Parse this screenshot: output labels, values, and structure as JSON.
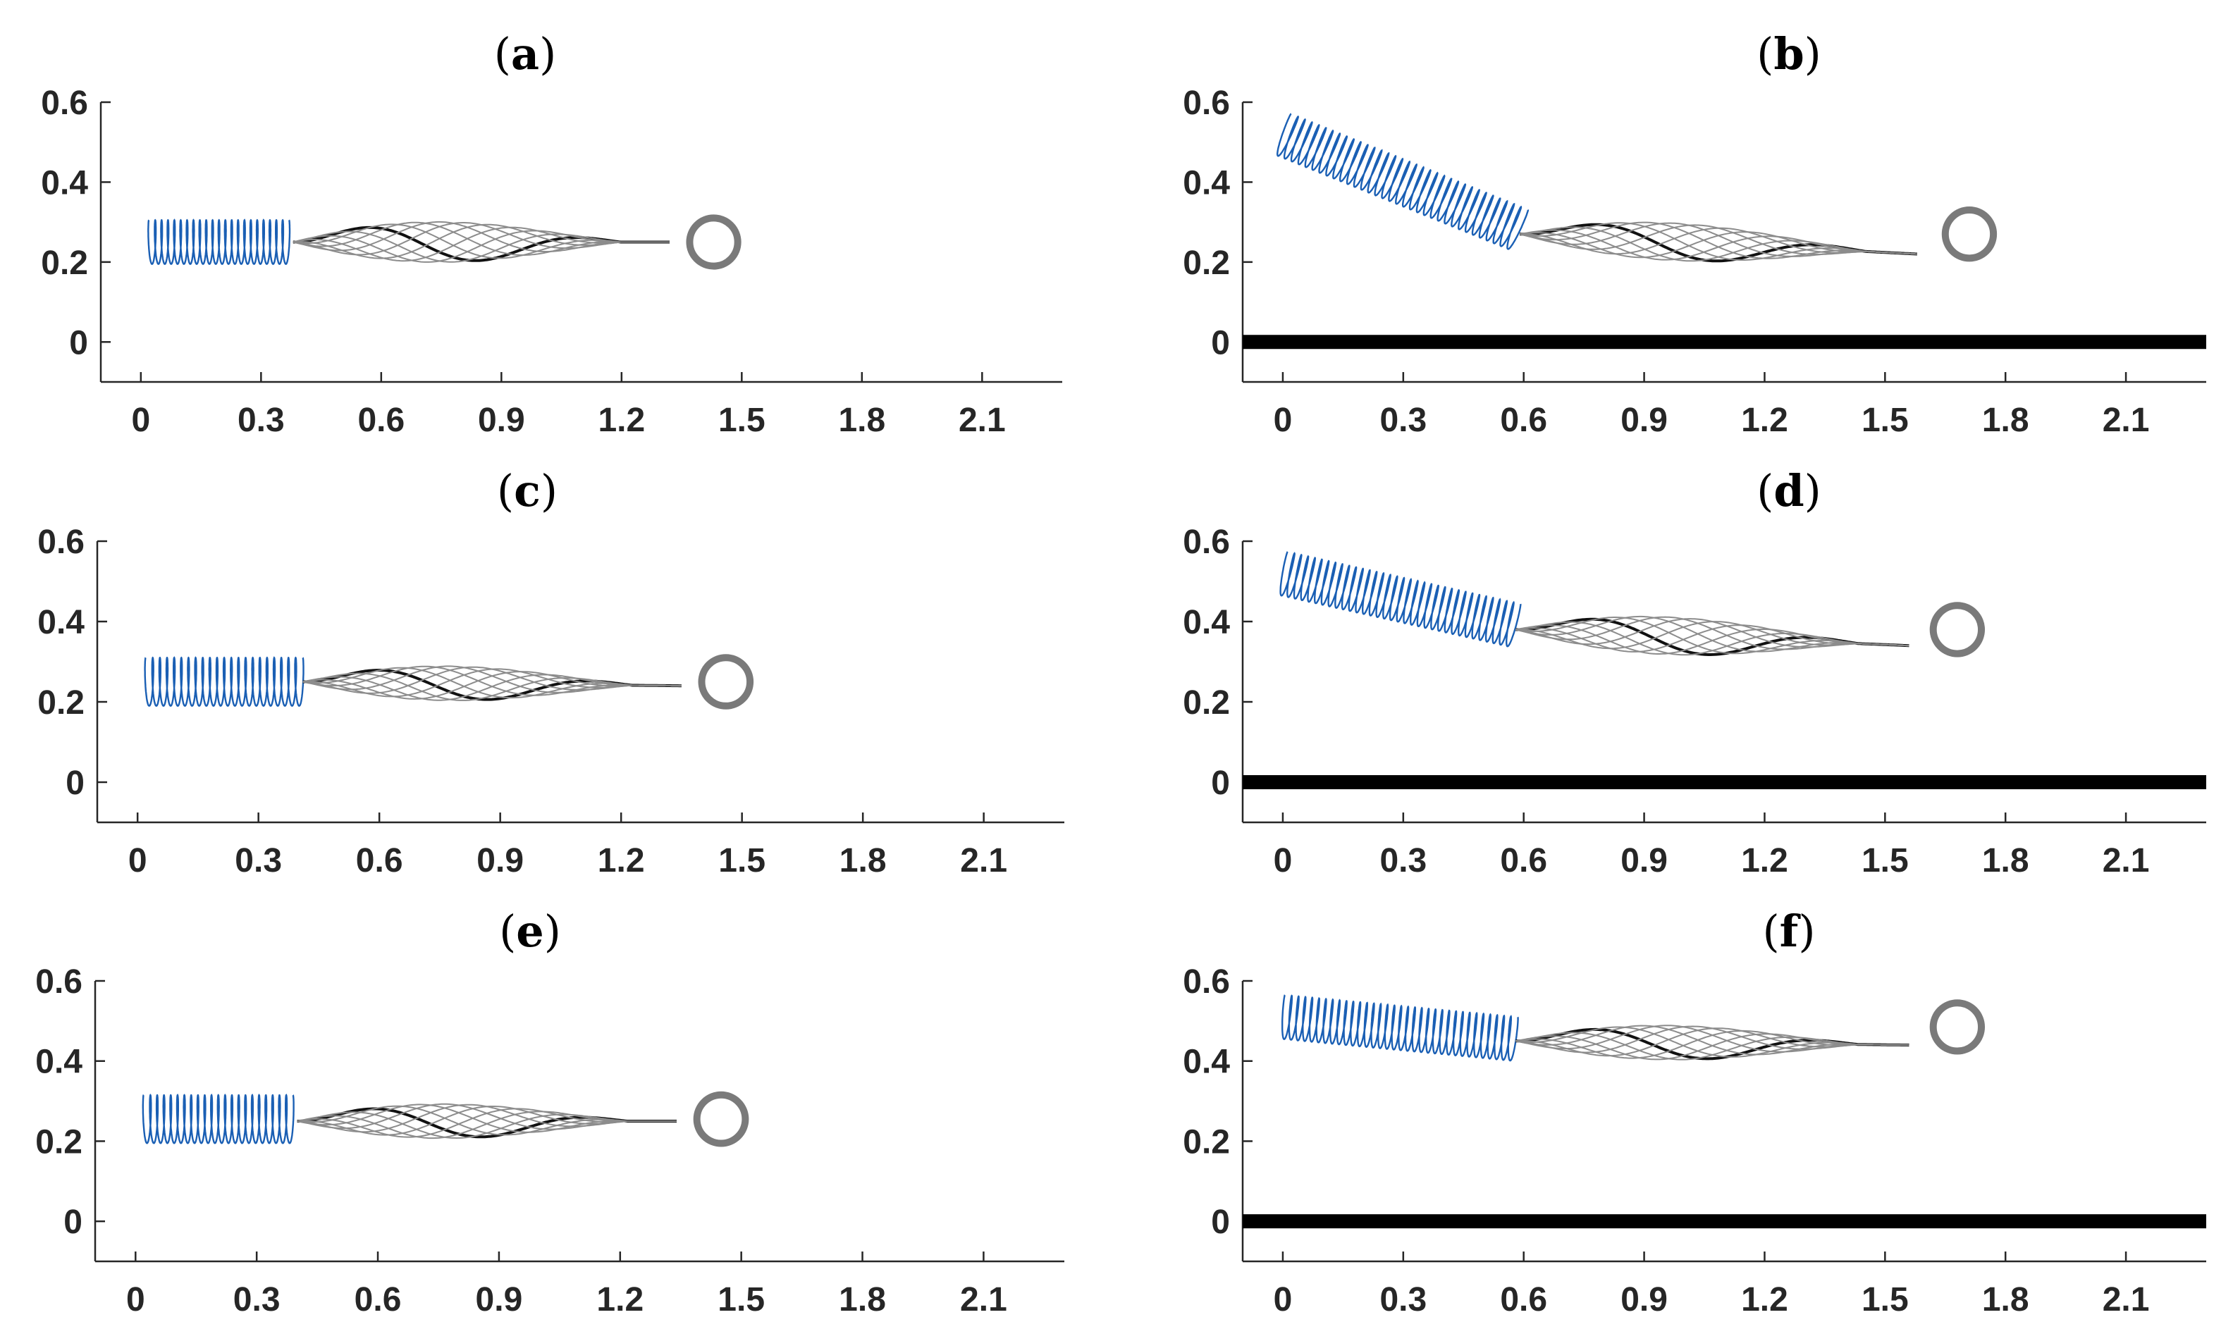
{
  "chart_data": [
    {
      "type": "line",
      "label": "(a)",
      "label_letter": "a",
      "xlim": [
        -0.1,
        2.3
      ],
      "ylim": [
        -0.1,
        0.6
      ],
      "x_ticks": [
        0,
        0.3,
        0.6,
        0.9,
        1.2,
        1.5,
        1.8,
        2.1
      ],
      "x_tick_labels": [
        "0",
        "0.3",
        "0.6",
        "0.9",
        "1.2",
        "1.5",
        "1.8",
        "2.1"
      ],
      "y_ticks": [
        0,
        0.2,
        0.4,
        0.6
      ],
      "y_tick_labels": [
        "0",
        "0.2",
        "0.4",
        "0.6"
      ],
      "ground": false,
      "helix": {
        "x_start": 0.02,
        "y_start": 0.25,
        "x_end": 0.37,
        "y_end": 0.25,
        "radius": 0.055,
        "turns": 22,
        "color": "#1a5fb4"
      },
      "tail": {
        "x_start": 0.38,
        "x_end": 1.32,
        "y_base_start": 0.25,
        "y_base_end": 0.25,
        "amplitude": 0.065,
        "frames": 9,
        "color": "#8c8c8c"
      },
      "target": {
        "x": 1.43,
        "y": 0.25,
        "radius": 0.1,
        "color": "#7a7a7a"
      }
    },
    {
      "type": "line",
      "label": "(b)",
      "label_letter": "b",
      "xlim": [
        -0.1,
        2.3
      ],
      "ylim": [
        -0.1,
        0.6
      ],
      "x_ticks": [
        0,
        0.3,
        0.6,
        0.9,
        1.2,
        1.5,
        1.8,
        2.1
      ],
      "x_tick_labels": [
        "0",
        "0.3",
        "0.6",
        "0.9",
        "1.2",
        "1.5",
        "1.8",
        "2.1"
      ],
      "y_ticks": [
        0,
        0.2,
        0.4,
        0.6
      ],
      "y_tick_labels": [
        "0",
        "0.2",
        "0.4",
        "0.6"
      ],
      "ground": true,
      "helix": {
        "x_start": 0.0,
        "y_start": 0.52,
        "x_end": 0.59,
        "y_end": 0.28,
        "radius": 0.055,
        "turns": 34,
        "color": "#1a5fb4"
      },
      "tail": {
        "x_start": 0.59,
        "x_end": 1.58,
        "y_base_start": 0.27,
        "y_base_end": 0.22,
        "amplitude": 0.06,
        "frames": 9,
        "color": "#8c8c8c"
      },
      "target": {
        "x": 1.71,
        "y": 0.27,
        "radius": 0.1,
        "color": "#7a7a7a"
      }
    },
    {
      "type": "line",
      "label": "(c)",
      "label_letter": "c",
      "xlim": [
        -0.1,
        2.3
      ],
      "ylim": [
        -0.1,
        0.6
      ],
      "x_ticks": [
        0,
        0.3,
        0.6,
        0.9,
        1.2,
        1.5,
        1.8,
        2.1
      ],
      "x_tick_labels": [
        "0",
        "0.3",
        "0.6",
        "0.9",
        "1.2",
        "1.5",
        "1.8",
        "2.1"
      ],
      "y_ticks": [
        0,
        0.2,
        0.4,
        0.6
      ],
      "y_tick_labels": [
        "0",
        "0.2",
        "0.4",
        "0.6"
      ],
      "ground": false,
      "helix": {
        "x_start": 0.02,
        "y_start": 0.25,
        "x_end": 0.41,
        "y_end": 0.25,
        "radius": 0.06,
        "turns": 22,
        "color": "#1a5fb4"
      },
      "tail": {
        "x_start": 0.41,
        "x_end": 1.35,
        "y_base_start": 0.25,
        "y_base_end": 0.24,
        "amplitude": 0.055,
        "frames": 9,
        "color": "#8c8c8c"
      },
      "target": {
        "x": 1.46,
        "y": 0.25,
        "radius": 0.1,
        "color": "#7a7a7a"
      }
    },
    {
      "type": "line",
      "label": "(d)",
      "label_letter": "d",
      "xlim": [
        -0.1,
        2.3
      ],
      "ylim": [
        -0.1,
        0.6
      ],
      "x_ticks": [
        0,
        0.3,
        0.6,
        0.9,
        1.2,
        1.5,
        1.8,
        2.1
      ],
      "x_tick_labels": [
        "0",
        "0.3",
        "0.6",
        "0.9",
        "1.2",
        "1.5",
        "1.8",
        "2.1"
      ],
      "y_ticks": [
        0,
        0.2,
        0.4,
        0.6
      ],
      "y_tick_labels": [
        "0",
        "0.2",
        "0.4",
        "0.6"
      ],
      "ground": true,
      "helix": {
        "x_start": 0.0,
        "y_start": 0.52,
        "x_end": 0.58,
        "y_end": 0.39,
        "radius": 0.055,
        "turns": 34,
        "color": "#1a5fb4"
      },
      "tail": {
        "x_start": 0.58,
        "x_end": 1.56,
        "y_base_start": 0.38,
        "y_base_end": 0.34,
        "amplitude": 0.06,
        "frames": 9,
        "color": "#8c8c8c"
      },
      "target": {
        "x": 1.68,
        "y": 0.38,
        "radius": 0.1,
        "color": "#7a7a7a"
      }
    },
    {
      "type": "line",
      "label": "(e)",
      "label_letter": "e",
      "xlim": [
        -0.1,
        2.3
      ],
      "ylim": [
        -0.1,
        0.6
      ],
      "x_ticks": [
        0,
        0.3,
        0.6,
        0.9,
        1.2,
        1.5,
        1.8,
        2.1
      ],
      "x_tick_labels": [
        "0",
        "0.3",
        "0.6",
        "0.9",
        "1.2",
        "1.5",
        "1.8",
        "2.1"
      ],
      "y_ticks": [
        0,
        0.2,
        0.4,
        0.6
      ],
      "y_tick_labels": [
        "0",
        "0.2",
        "0.4",
        "0.6"
      ],
      "ground": false,
      "helix": {
        "x_start": 0.02,
        "y_start": 0.255,
        "x_end": 0.39,
        "y_end": 0.255,
        "radius": 0.06,
        "turns": 22,
        "color": "#1a5fb4"
      },
      "tail": {
        "x_start": 0.4,
        "x_end": 1.34,
        "y_base_start": 0.25,
        "y_base_end": 0.25,
        "amplitude": 0.055,
        "frames": 9,
        "color": "#8c8c8c"
      },
      "target": {
        "x": 1.45,
        "y": 0.255,
        "radius": 0.1,
        "color": "#7a7a7a"
      }
    },
    {
      "type": "line",
      "label": "(f)",
      "label_letter": "f",
      "xlim": [
        -0.1,
        2.3
      ],
      "ylim": [
        -0.1,
        0.6
      ],
      "x_ticks": [
        0,
        0.3,
        0.6,
        0.9,
        1.2,
        1.5,
        1.8,
        2.1
      ],
      "x_tick_labels": [
        "0",
        "0.3",
        "0.6",
        "0.9",
        "1.2",
        "1.5",
        "1.8",
        "2.1"
      ],
      "y_ticks": [
        0,
        0.2,
        0.4,
        0.6
      ],
      "y_tick_labels": [
        "0",
        "0.2",
        "0.4",
        "0.6"
      ],
      "ground": true,
      "helix": {
        "x_start": 0.0,
        "y_start": 0.51,
        "x_end": 0.58,
        "y_end": 0.455,
        "radius": 0.055,
        "turns": 34,
        "color": "#1a5fb4"
      },
      "tail": {
        "x_start": 0.58,
        "x_end": 1.56,
        "y_base_start": 0.45,
        "y_base_end": 0.44,
        "amplitude": 0.055,
        "frames": 9,
        "color": "#8c8c8c"
      },
      "target": {
        "x": 1.68,
        "y": 0.485,
        "radius": 0.1,
        "color": "#7a7a7a"
      }
    }
  ]
}
